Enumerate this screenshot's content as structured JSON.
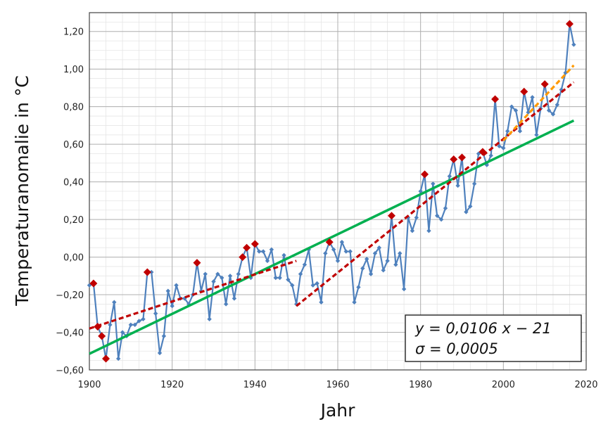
{
  "chart_data": {
    "type": "line",
    "title": "",
    "xlabel": "Jahr",
    "ylabel": "Temperaturanomalie in °C",
    "xlim": [
      1900,
      2020
    ],
    "ylim": [
      -0.6,
      1.3
    ],
    "x_ticks": [
      1900,
      1920,
      1940,
      1960,
      1980,
      2000,
      2020
    ],
    "y_ticks": [
      -0.6,
      -0.4,
      -0.2,
      0.0,
      0.2,
      0.4,
      0.6,
      0.8,
      1.0,
      1.2
    ],
    "x_tick_labels": [
      "1900",
      "1920",
      "1940",
      "1960",
      "1980",
      "2000",
      "2020"
    ],
    "y_tick_labels": [
      "−0,60",
      "−0,40",
      "−0,20",
      "0,00",
      "0,20",
      "0,40",
      "0,60",
      "0,80",
      "1,00",
      "1,20"
    ],
    "grid": true,
    "minor_grid": true,
    "series": [
      {
        "type": "line",
        "color": "#4f81bd",
        "marker": "diamond",
        "x": [
          1900,
          1901,
          1902,
          1903,
          1904,
          1905,
          1906,
          1907,
          1908,
          1909,
          1910,
          1911,
          1912,
          1913,
          1914,
          1915,
          1916,
          1917,
          1918,
          1919,
          1920,
          1921,
          1922,
          1923,
          1924,
          1925,
          1926,
          1927,
          1928,
          1929,
          1930,
          1931,
          1932,
          1933,
          1934,
          1935,
          1936,
          1937,
          1938,
          1939,
          1940,
          1941,
          1942,
          1943,
          1944,
          1945,
          1946,
          1947,
          1948,
          1949,
          1950,
          1951,
          1952,
          1953,
          1954,
          1955,
          1956,
          1957,
          1958,
          1959,
          1960,
          1961,
          1962,
          1963,
          1964,
          1965,
          1966,
          1967,
          1968,
          1969,
          1970,
          1971,
          1972,
          1973,
          1974,
          1975,
          1976,
          1977,
          1978,
          1979,
          1980,
          1981,
          1982,
          1983,
          1984,
          1985,
          1986,
          1987,
          1988,
          1989,
          1990,
          1991,
          1992,
          1993,
          1994,
          1995,
          1996,
          1997,
          1998,
          1999,
          2000,
          2001,
          2002,
          2003,
          2004,
          2005,
          2006,
          2007,
          2008,
          2009,
          2010,
          2011,
          2012,
          2013,
          2014,
          2015,
          2016,
          2017
        ],
        "y": [
          -0.15,
          -0.14,
          -0.37,
          -0.42,
          -0.54,
          -0.36,
          -0.24,
          -0.54,
          -0.4,
          -0.42,
          -0.36,
          -0.36,
          -0.34,
          -0.33,
          -0.08,
          -0.08,
          -0.3,
          -0.51,
          -0.42,
          -0.18,
          -0.26,
          -0.15,
          -0.22,
          -0.22,
          -0.25,
          -0.2,
          -0.03,
          -0.18,
          -0.09,
          -0.33,
          -0.13,
          -0.09,
          -0.11,
          -0.25,
          -0.1,
          -0.22,
          -0.09,
          0.0,
          0.05,
          -0.11,
          0.07,
          0.03,
          0.03,
          -0.02,
          0.04,
          -0.11,
          -0.11,
          0.01,
          -0.12,
          -0.15,
          -0.25,
          -0.09,
          -0.04,
          0.04,
          -0.15,
          -0.14,
          -0.24,
          0.02,
          0.08,
          0.04,
          -0.02,
          0.08,
          0.03,
          0.03,
          -0.24,
          -0.16,
          -0.06,
          -0.01,
          -0.09,
          0.02,
          0.05,
          -0.07,
          -0.02,
          0.22,
          -0.04,
          0.02,
          -0.17,
          0.21,
          0.14,
          0.21,
          0.35,
          0.44,
          0.14,
          0.39,
          0.22,
          0.2,
          0.26,
          0.43,
          0.52,
          0.38,
          0.53,
          0.24,
          0.27,
          0.39,
          0.55,
          0.56,
          0.49,
          0.54,
          0.84,
          0.59,
          0.58,
          0.67,
          0.8,
          0.78,
          0.67,
          0.88,
          0.77,
          0.85,
          0.65,
          0.79,
          0.92,
          0.78,
          0.76,
          0.81,
          0.89,
          0.98,
          1.24,
          1.13
        ]
      },
      {
        "type": "marker",
        "color": "#c00000",
        "marker": "diamond",
        "x": [
          1901,
          1902,
          1903,
          1904,
          1914,
          1926,
          1937,
          1938,
          1940,
          1958,
          1973,
          1981,
          1988,
          1990,
          1995,
          1998,
          2005,
          2010,
          2016
        ],
        "y": [
          -0.14,
          -0.37,
          -0.42,
          -0.54,
          -0.08,
          -0.03,
          0.0,
          0.05,
          0.07,
          0.08,
          0.22,
          0.44,
          0.52,
          0.53,
          0.56,
          0.84,
          0.88,
          0.92,
          1.24
        ]
      },
      {
        "type": "trend",
        "color": "#00b050",
        "style": "solid",
        "x": [
          1900,
          2017
        ],
        "y": [
          -0.514,
          0.726
        ]
      },
      {
        "type": "trend",
        "color": "#c00000",
        "style": "dashed",
        "x": [
          1900,
          1950
        ],
        "y": [
          -0.38,
          -0.02
        ]
      },
      {
        "type": "trend",
        "color": "#c00000",
        "style": "dashed",
        "x": [
          1950,
          2017
        ],
        "y": [
          -0.26,
          0.93
        ]
      },
      {
        "type": "trend",
        "color": "#ff9900",
        "style": "dashed",
        "x": [
          2000,
          2017
        ],
        "y": [
          0.62,
          1.02
        ]
      }
    ],
    "annotation": {
      "line1": "y = 0,0106 x − 21",
      "line2": "σ = 0,0005",
      "position": "bottom-right"
    }
  }
}
